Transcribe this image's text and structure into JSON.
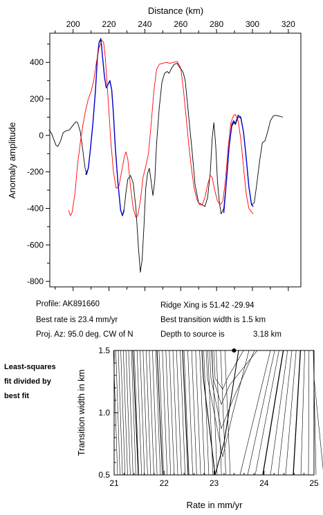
{
  "chart_data": [
    {
      "type": "line",
      "xlabel": "Distance (km)",
      "ylabel": "Anomaly amplitude",
      "xlim": [
        187,
        327
      ],
      "ylim": [
        -830,
        560
      ],
      "xticks": [
        200,
        220,
        240,
        260,
        280,
        300,
        320
      ],
      "yticks": [
        -800,
        -600,
        -400,
        -200,
        0,
        200,
        400
      ],
      "series": [
        {
          "name": "",
          "color": "#000000",
          "points": [
            [
              186.5,
              30
            ],
            [
              188,
              10
            ],
            [
              189.5,
              -30
            ],
            [
              190.5,
              -55
            ],
            [
              191.5,
              -60
            ],
            [
              193,
              -30
            ],
            [
              194.5,
              15
            ],
            [
              196,
              25
            ],
            [
              198,
              30
            ],
            [
              199.5,
              50
            ],
            [
              201.5,
              75
            ],
            [
              202.5,
              70
            ],
            [
              204,
              20
            ],
            [
              205.5,
              -90
            ],
            [
              206.5,
              -170
            ],
            [
              207.5,
              -215
            ],
            [
              208.5,
              -180
            ],
            [
              209.5,
              -90
            ],
            [
              211,
              60
            ],
            [
              212.5,
              250
            ],
            [
              213.5,
              420
            ],
            [
              214.5,
              510
            ],
            [
              215.5,
              520
            ],
            [
              216.5,
              420
            ],
            [
              217.5,
              320
            ],
            [
              218.5,
              260
            ],
            [
              219.5,
              280
            ],
            [
              220.5,
              295
            ],
            [
              221.5,
              250
            ],
            [
              222.5,
              120
            ],
            [
              223.5,
              -60
            ],
            [
              225,
              -260
            ],
            [
              226.5,
              -410
            ],
            [
              227.5,
              -440
            ],
            [
              228.5,
              -400
            ],
            [
              229.5,
              -310
            ],
            [
              230.5,
              -240
            ],
            [
              232,
              -220
            ],
            [
              233.5,
              -260
            ],
            [
              235,
              -400
            ],
            [
              236.5,
              -620
            ],
            [
              237.5,
              -750
            ],
            [
              238.5,
              -680
            ],
            [
              239.5,
              -500
            ],
            [
              240.5,
              -290
            ],
            [
              241.5,
              -210
            ],
            [
              242.5,
              -180
            ],
            [
              243.5,
              -250
            ],
            [
              244.5,
              -330
            ],
            [
              245.5,
              -250
            ],
            [
              246.5,
              -50
            ],
            [
              248,
              150
            ],
            [
              249.5,
              290
            ],
            [
              251,
              340
            ],
            [
              252.5,
              350
            ],
            [
              253.5,
              340
            ],
            [
              255,
              370
            ],
            [
              256.5,
              390
            ],
            [
              258,
              395
            ],
            [
              259.5,
              370
            ],
            [
              260.5,
              360
            ],
            [
              261.5,
              340
            ],
            [
              262.5,
              300
            ],
            [
              263.5,
              200
            ],
            [
              265,
              50
            ],
            [
              266.5,
              -100
            ],
            [
              268,
              -270
            ],
            [
              270,
              -370
            ],
            [
              272,
              -380
            ],
            [
              273.5,
              -390
            ],
            [
              275,
              -340
            ],
            [
              276.5,
              -200
            ],
            [
              277.5,
              -20
            ],
            [
              278.5,
              70
            ],
            [
              279.5,
              -50
            ],
            [
              280.5,
              -250
            ],
            [
              281.5,
              -360
            ],
            [
              282.5,
              -430
            ],
            [
              284,
              -400
            ],
            [
              285.5,
              -250
            ],
            [
              287,
              -60
            ],
            [
              288.5,
              50
            ],
            [
              289.5,
              70
            ],
            [
              290.5,
              60
            ],
            [
              292,
              100
            ],
            [
              293.5,
              95
            ],
            [
              295,
              20
            ],
            [
              296.5,
              -120
            ],
            [
              298,
              -280
            ],
            [
              299.5,
              -380
            ],
            [
              301,
              -370
            ],
            [
              302.5,
              -260
            ],
            [
              304,
              -140
            ],
            [
              305.5,
              -40
            ],
            [
              307,
              -30
            ],
            [
              308.5,
              20
            ],
            [
              310,
              80
            ],
            [
              311.5,
              105
            ],
            [
              313,
              110
            ],
            [
              315,
              105
            ],
            [
              317,
              100
            ]
          ]
        },
        {
          "name": "",
          "color": "#0000cc",
          "points": [
            [
              207,
              -215
            ],
            [
              208.5,
              -180
            ],
            [
              209.5,
              -90
            ],
            [
              211,
              60
            ],
            [
              212.5,
              250
            ],
            [
              213.5,
              420
            ],
            [
              214.5,
              510
            ],
            [
              215.5,
              530
            ],
            [
              216.5,
              420
            ],
            [
              217.5,
              320
            ],
            [
              218.5,
              260
            ],
            [
              219.5,
              280
            ],
            [
              220.5,
              300
            ],
            [
              221.5,
              250
            ],
            [
              222.5,
              120
            ],
            [
              223.5,
              -60
            ],
            [
              225,
              -260
            ],
            [
              226.5,
              -410
            ],
            [
              227.5,
              -440
            ],
            [
              228.5,
              -410
            ]
          ]
        },
        {
          "name": "",
          "color": "#0000cc",
          "points": [
            [
              284,
              -425
            ],
            [
              285.5,
              -250
            ],
            [
              287,
              -60
            ],
            [
              288.5,
              60
            ],
            [
              289.5,
              80
            ],
            [
              290.5,
              65
            ],
            [
              292,
              110
            ],
            [
              293.5,
              100
            ],
            [
              295,
              20
            ],
            [
              296.5,
              -120
            ],
            [
              298,
              -280
            ],
            [
              299.5,
              -380
            ],
            [
              300.5,
              -390
            ]
          ]
        },
        {
          "name": "",
          "color": "#ff0000",
          "points": [
            [
              197.5,
              -410
            ],
            [
              198.5,
              -440
            ],
            [
              199.5,
              -420
            ],
            [
              201,
              -320
            ],
            [
              202.5,
              -160
            ],
            [
              204,
              -40
            ],
            [
              205.5,
              60
            ],
            [
              207,
              140
            ],
            [
              208.5,
              200
            ],
            [
              210,
              240
            ],
            [
              211.5,
              300
            ],
            [
              213,
              400
            ],
            [
              214.5,
              480
            ],
            [
              216,
              520
            ],
            [
              217,
              510
            ],
            [
              218,
              420
            ],
            [
              219.5,
              200
            ],
            [
              221,
              -30
            ],
            [
              222.5,
              -200
            ],
            [
              224,
              -290
            ],
            [
              225.5,
              -280
            ],
            [
              227,
              -200
            ],
            [
              228.5,
              -120
            ],
            [
              229.5,
              -90
            ],
            [
              230.5,
              -130
            ],
            [
              232,
              -280
            ],
            [
              233.5,
              -400
            ],
            [
              235,
              -450
            ],
            [
              236,
              -440
            ],
            [
              237.5,
              -360
            ],
            [
              239,
              -230
            ],
            [
              240.5,
              -170
            ],
            [
              242,
              -100
            ],
            [
              243.5,
              60
            ],
            [
              245,
              240
            ],
            [
              246.5,
              360
            ],
            [
              248,
              390
            ],
            [
              250,
              395
            ],
            [
              252,
              400
            ],
            [
              254,
              395
            ],
            [
              256,
              400
            ],
            [
              258,
              405
            ],
            [
              260,
              370
            ],
            [
              261.5,
              250
            ],
            [
              263,
              100
            ],
            [
              264.5,
              -50
            ],
            [
              266,
              -180
            ],
            [
              267.5,
              -290
            ],
            [
              269,
              -350
            ],
            [
              270.5,
              -380
            ],
            [
              272,
              -380
            ],
            [
              273.5,
              -340
            ],
            [
              275,
              -270
            ],
            [
              276.5,
              -220
            ],
            [
              277.5,
              -230
            ],
            [
              279,
              -300
            ],
            [
              280.5,
              -360
            ],
            [
              282,
              -380
            ],
            [
              283.5,
              -360
            ],
            [
              285,
              -240
            ],
            [
              286.5,
              -60
            ],
            [
              288,
              70
            ],
            [
              289.5,
              110
            ],
            [
              290.5,
              115
            ],
            [
              292,
              80
            ],
            [
              293.5,
              -20
            ],
            [
              295,
              -170
            ],
            [
              296.5,
              -320
            ],
            [
              298,
              -400
            ],
            [
              299.5,
              -420
            ],
            [
              300.5,
              -430
            ]
          ]
        }
      ]
    },
    {
      "type": "contour",
      "xlabel": "Rate in mm/yr",
      "ylabel": "Transition width in km",
      "xlim": [
        21,
        25
      ],
      "ylim": [
        0.5,
        1.5
      ],
      "xticks": [
        21,
        22,
        23,
        24,
        25
      ],
      "yticks": [
        0.5,
        1.0,
        1.5
      ],
      "best_fit_point": [
        23.4,
        1.5
      ]
    }
  ],
  "info": {
    "profile": "Profile: AK891660",
    "best_rate": "Best rate is 23.4 mm/yr",
    "proj_az": "Proj. Az: 95.0 deg. CW of N",
    "ridge_xing": "Ridge Xing is 51.42 -29.94",
    "best_transition": "Best transition width is 1.5 km",
    "depth_label": "Depth to source is",
    "depth_value": "3.18 km"
  },
  "side_note": [
    "Least-squares",
    "fit divided by",
    "best fit"
  ]
}
